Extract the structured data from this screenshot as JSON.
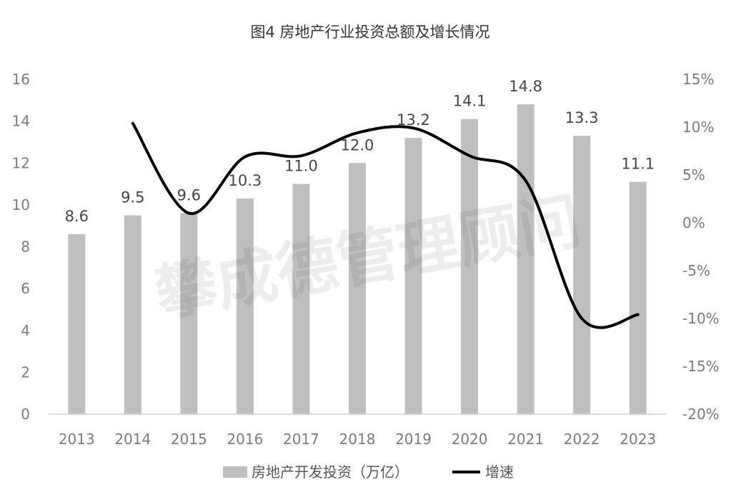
{
  "chart_data": {
    "type": "bar",
    "title": "图4 房地产行业投资总额及增长情况",
    "categories": [
      "2013",
      "2014",
      "2015",
      "2016",
      "2017",
      "2018",
      "2019",
      "2020",
      "2021",
      "2022",
      "2023"
    ],
    "series": [
      {
        "name": "房地产开发投资（万亿）",
        "type": "bar",
        "axis": "left",
        "color": "#bfbfbf",
        "values": [
          8.6,
          9.5,
          9.6,
          10.3,
          11.0,
          12.0,
          13.2,
          14.1,
          14.8,
          13.3,
          11.1
        ],
        "labels": [
          "8.6",
          "9.5",
          "9.6",
          "10.3",
          "11.0",
          "12.0",
          "13.2",
          "14.1",
          "14.8",
          "13.3",
          "11.1"
        ]
      },
      {
        "name": "增速",
        "type": "line",
        "axis": "right",
        "color": "#000000",
        "smooth": true,
        "values": [
          null,
          10.4,
          1.0,
          6.9,
          7.0,
          9.4,
          9.9,
          7.0,
          4.4,
          -10.0,
          -9.6
        ]
      }
    ],
    "y_left": {
      "ylim": [
        0,
        16
      ],
      "ticks": [
        "0",
        "2",
        "4",
        "6",
        "8",
        "10",
        "12",
        "14",
        "16"
      ]
    },
    "y_right": {
      "ylim": [
        -20,
        15
      ],
      "ticks": [
        "-20%",
        "-15%",
        "-10%",
        "-5%",
        "0%",
        "5%",
        "10%",
        "15%"
      ]
    },
    "grid": false,
    "legend": {
      "position": "bottom"
    },
    "watermark": "攀成德管理顾问"
  }
}
